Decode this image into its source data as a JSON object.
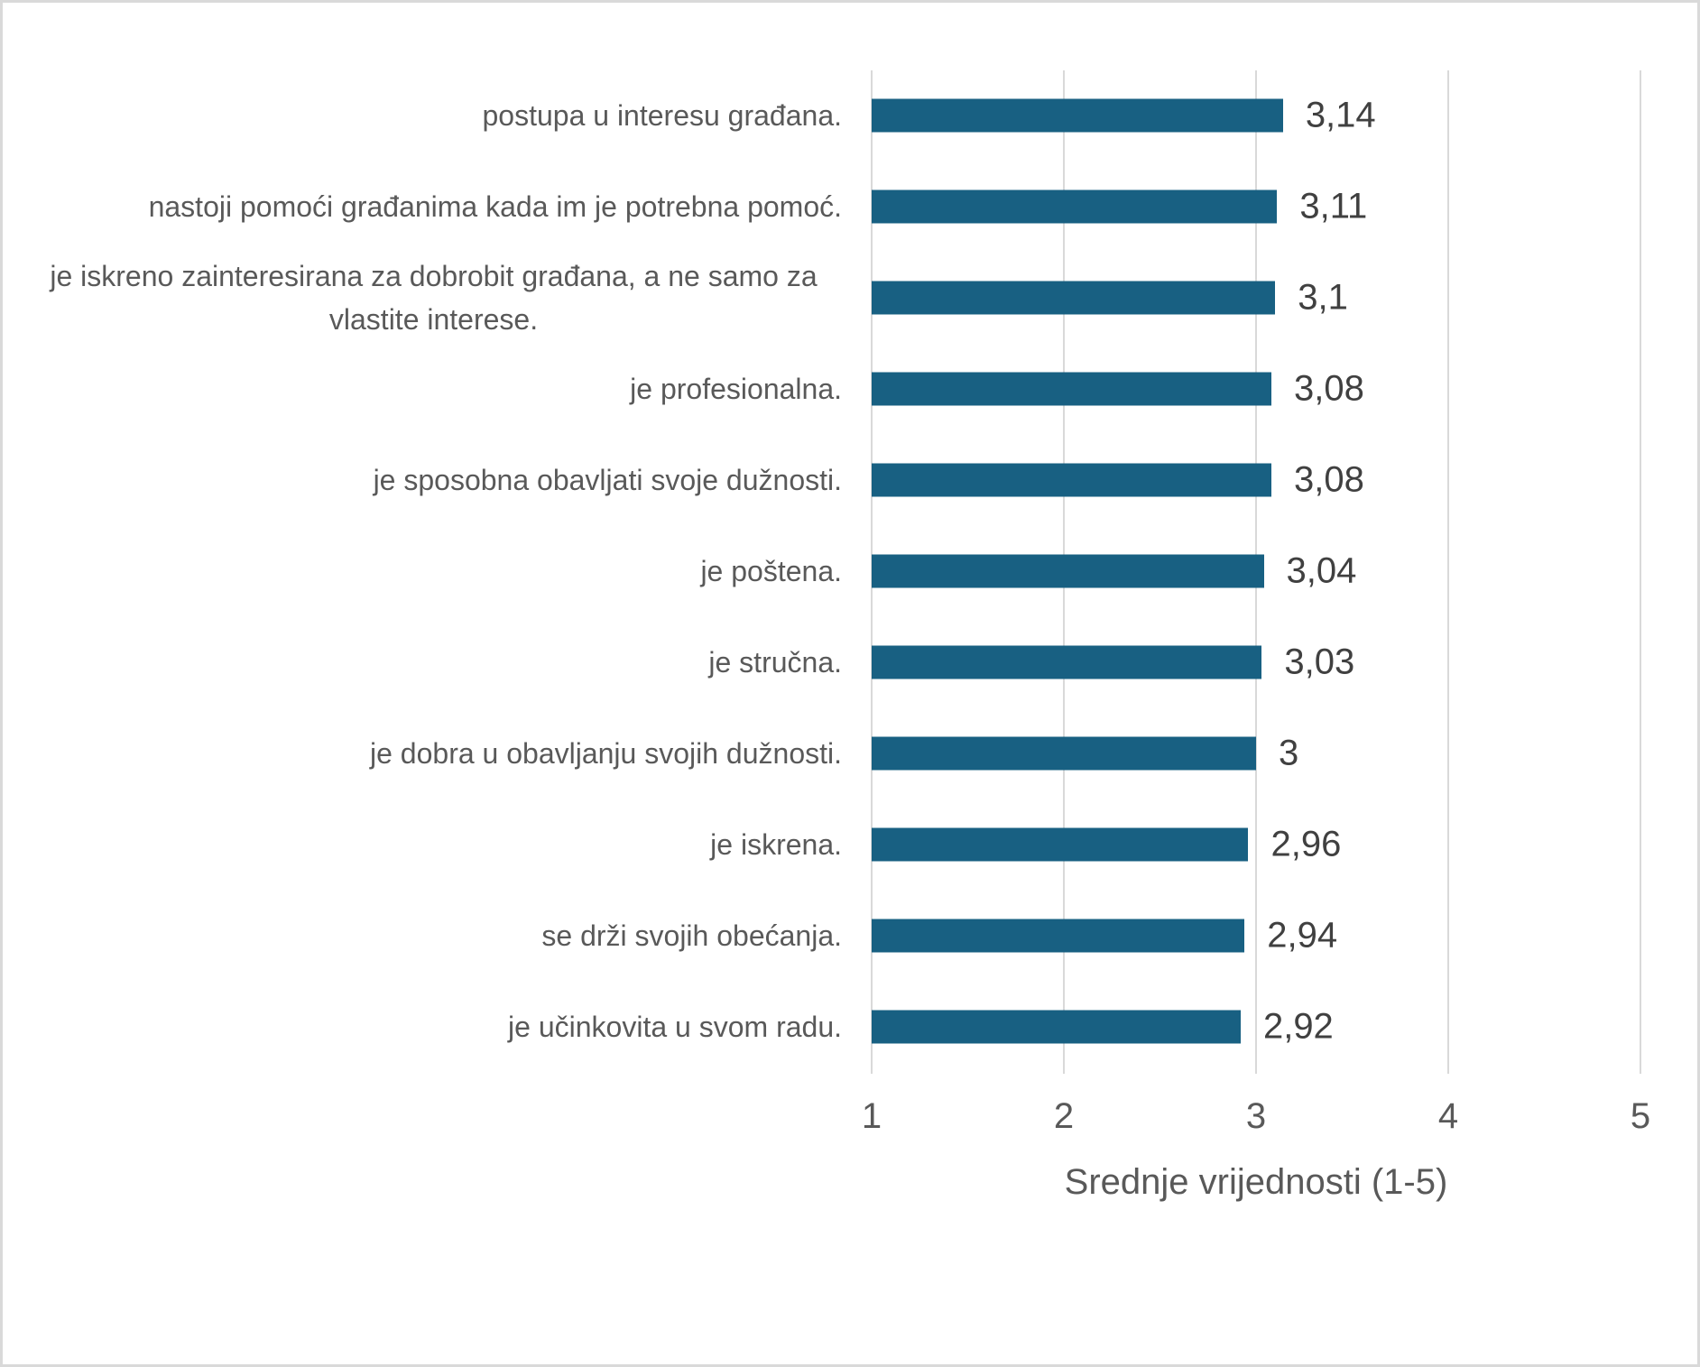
{
  "chart_data": {
    "type": "bar",
    "orientation": "horizontal",
    "categories": [
      "postupa u interesu građana.",
      "nastoji pomoći građanima kada im je potrebna pomoć.",
      "je iskreno zainteresirana za dobrobit građana, a ne samo za vlastite interese.",
      "je profesionalna.",
      "je sposobna obavljati svoje dužnosti.",
      "je poštena.",
      "je stručna.",
      "je dobra u obavljanju svojih dužnosti.",
      "je iskrena.",
      "se drži svojih obećanja.",
      "je učinkovita u svom radu."
    ],
    "values": [
      3.14,
      3.11,
      3.1,
      3.08,
      3.08,
      3.04,
      3.03,
      3.0,
      2.96,
      2.94,
      2.92
    ],
    "value_labels": [
      "3,14",
      "3,11",
      "3,1",
      "3,08",
      "3,08",
      "3,04",
      "3,03",
      "3",
      "2,96",
      "2,94",
      "2,92"
    ],
    "title": "",
    "xlabel": "Srednje vrijednosti (1-5)",
    "ylabel": "",
    "xlim": [
      1,
      5
    ],
    "x_ticks": [
      "1",
      "2",
      "3",
      "4",
      "5"
    ],
    "grid": "vertical",
    "legend": "none",
    "colors": {
      "bar": "#186082",
      "gridline": "#d9d9d9",
      "category_label": "#595959",
      "value_label": "#404040",
      "tick_label": "#595959",
      "axis_title": "#595959",
      "background": "#ffffff",
      "border": "#d9d9d9"
    }
  }
}
